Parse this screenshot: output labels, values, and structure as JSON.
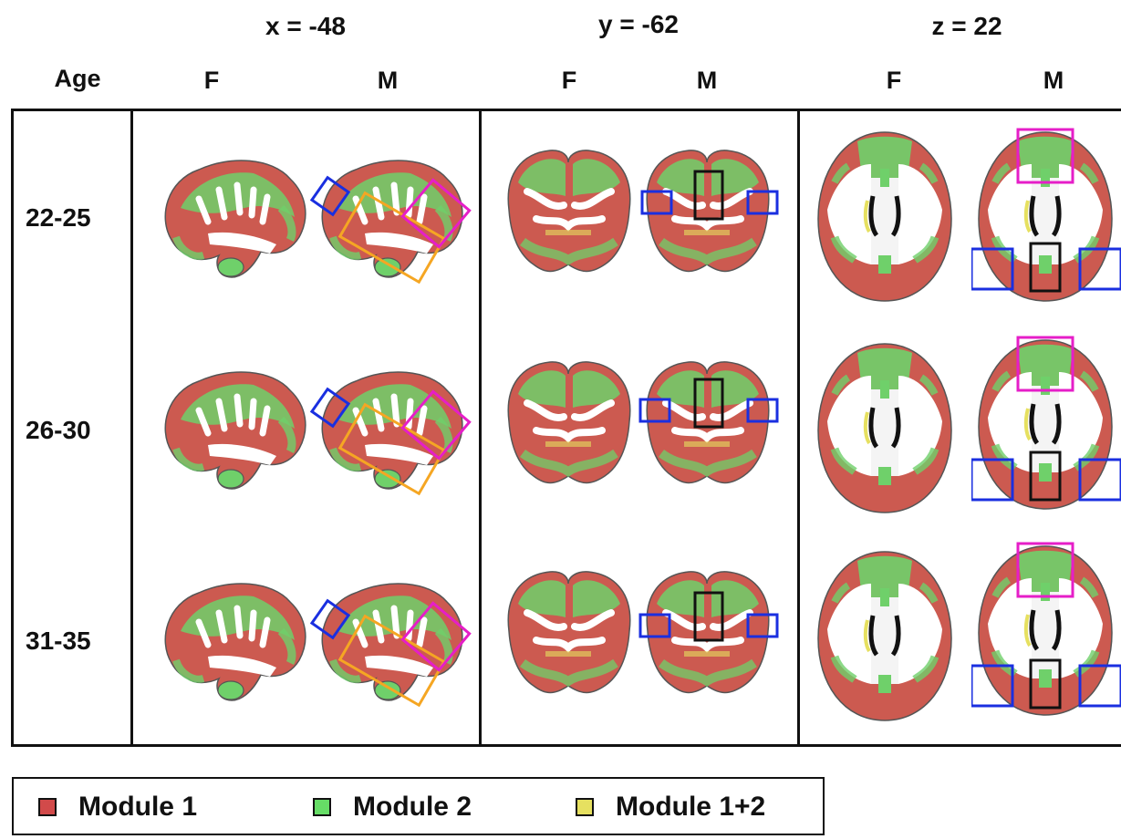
{
  "header": {
    "x_label": "x = -48",
    "y_label": "y = -62",
    "z_label": "z = 22",
    "age_label": "Age",
    "sex_f": "F",
    "sex_m": "M"
  },
  "rows": [
    {
      "age": "22-25"
    },
    {
      "age": "26-30"
    },
    {
      "age": "31-35"
    }
  ],
  "legend": {
    "items": [
      {
        "label": "Module 1",
        "color": "#d24a4a"
      },
      {
        "label": "Module 2",
        "color": "#66dd66"
      },
      {
        "label": "Module 1+2",
        "color": "#e6e060"
      }
    ]
  },
  "colors": {
    "module1": "#d24a4a",
    "module2": "#66dd66",
    "module12": "#e6e060",
    "box_blue": "#1a2fe0",
    "box_magenta": "#e61ec8",
    "box_orange": "#f5a623",
    "box_black": "#111111"
  }
}
